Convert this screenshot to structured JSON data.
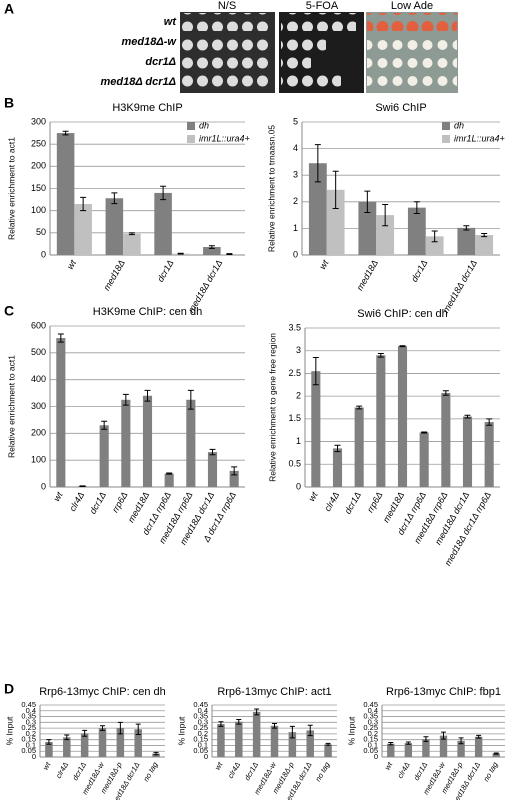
{
  "panel_labels": [
    "A",
    "B",
    "C",
    "D"
  ],
  "spot_assay": {
    "conditions": [
      "N/S",
      "5-FOA",
      "Low Ade"
    ],
    "strains": [
      "wt",
      "med18Δ-w",
      "dcr1Δ",
      "med18Δ dcr1Δ"
    ]
  },
  "chart_data": [
    {
      "type": "bar",
      "title": "H3K9me ChIP",
      "y_label": "Relative enrichment to act1",
      "categories": [
        "wt",
        "med18Δ",
        "dcr1Δ",
        "med18Δ dcr1Δ"
      ],
      "series": [
        {
          "name": "dh",
          "color": "#808080",
          "values": [
            275,
            128,
            140,
            18
          ],
          "errors": [
            4,
            12,
            15,
            3
          ]
        },
        {
          "name": "imr1L::ura4+",
          "color": "#c0c0c0",
          "values": [
            115,
            48,
            3,
            2
          ],
          "errors": [
            15,
            2,
            1,
            1
          ]
        }
      ],
      "ylim": [
        0,
        300
      ],
      "yticks": [
        0,
        50,
        100,
        150,
        200,
        250,
        300
      ],
      "grid": true,
      "legend": "upper right"
    },
    {
      "type": "bar",
      "title": "Swi6 ChIP",
      "y_label": "Relative enrichment to trnaasn.05",
      "categories": [
        "wt",
        "med18Δ",
        "dcr1Δ",
        "med18Δ dcr1Δ"
      ],
      "series": [
        {
          "name": "dh",
          "color": "#808080",
          "values": [
            3.45,
            2.0,
            1.78,
            1.02
          ],
          "errors": [
            0.7,
            0.4,
            0.22,
            0.08
          ]
        },
        {
          "name": "imr1L::ura4+",
          "color": "#c0c0c0",
          "values": [
            2.45,
            1.5,
            0.7,
            0.75
          ],
          "errors": [
            0.7,
            0.4,
            0.2,
            0.06
          ]
        }
      ],
      "ylim": [
        0,
        5
      ],
      "yticks": [
        0,
        1,
        2,
        3,
        4,
        5
      ],
      "grid": true,
      "legend": "upper right"
    },
    {
      "type": "bar",
      "title": "H3K9me ChIP: cen dh",
      "y_label": "Relative enrichment to act1",
      "categories": [
        "wt",
        "clr4Δ",
        "dcr1Δ",
        "rrp6Δ",
        "med18Δ",
        "dcr1Δ rrp6Δ",
        "med18Δ rrp6Δ",
        "med18Δ dcr1Δ",
        "Δ dcr1Δ rrp6Δ"
      ],
      "values": [
        555,
        3,
        230,
        325,
        340,
        50,
        325,
        130,
        60
      ],
      "errors": [
        15,
        1,
        15,
        20,
        20,
        2,
        35,
        10,
        15
      ],
      "color": "#808080",
      "ylim": [
        0,
        600
      ],
      "yticks": [
        0,
        100,
        200,
        300,
        400,
        500,
        600
      ],
      "grid": true
    },
    {
      "type": "bar",
      "title": "Swi6 ChIP: cen dh",
      "y_label": "Relative enrichment to gene free region",
      "categories": [
        "wt",
        "clr4Δ",
        "dcr1Δ",
        "rrp6Δ",
        "med18Δ",
        "dcr1Δ rrp6Δ",
        "med18Δ rrp6Δ",
        "med18Δ dcr1Δ",
        "med18Δ dcr1Δ rrp6Δ"
      ],
      "values": [
        2.55,
        0.85,
        1.75,
        2.9,
        3.1,
        1.2,
        2.07,
        1.55,
        1.43
      ],
      "errors": [
        0.3,
        0.07,
        0.03,
        0.04,
        0.01,
        0.01,
        0.05,
        0.03,
        0.07
      ],
      "color": "#808080",
      "ylim": [
        0,
        3.5
      ],
      "yticks": [
        0,
        0.5,
        1,
        1.5,
        2,
        2.5,
        3,
        3.5
      ],
      "grid": true
    },
    {
      "type": "bar",
      "title": "Rrp6-13myc ChIP: cen dh",
      "y_label": "% Input",
      "categories": [
        "wt",
        "clr4Δ",
        "dcr1Δ",
        "med18Δ-w",
        "med18Δ-p",
        "med18Δ dcr1Δ",
        "no tag"
      ],
      "values": [
        0.13,
        0.17,
        0.205,
        0.25,
        0.25,
        0.24,
        0.03
      ],
      "errors": [
        0.02,
        0.02,
        0.025,
        0.02,
        0.05,
        0.045,
        0.01
      ],
      "color": "#808080",
      "ylim": [
        0,
        0.45
      ],
      "yticks": [
        0,
        0.05,
        0.1,
        0.15,
        0.2,
        0.25,
        0.3,
        0.35,
        0.4,
        0.45
      ],
      "grid": true
    },
    {
      "type": "bar",
      "title": "Rrp6-13myc ChIP: act1",
      "y_label": "% Input",
      "categories": [
        "wt",
        "clr4Δ",
        "dcr1Δ",
        "med18Δ-w",
        "med18Δ-p",
        "med18Δ dcr1Δ",
        "no tag"
      ],
      "values": [
        0.285,
        0.305,
        0.39,
        0.27,
        0.215,
        0.23,
        0.11
      ],
      "errors": [
        0.02,
        0.02,
        0.025,
        0.02,
        0.05,
        0.045,
        0.008
      ],
      "color": "#808080",
      "ylim": [
        0,
        0.45
      ],
      "yticks": [
        0,
        0.05,
        0.1,
        0.15,
        0.2,
        0.25,
        0.3,
        0.35,
        0.4,
        0.45
      ],
      "grid": true
    },
    {
      "type": "bar",
      "title": "Rrp6-13myc ChIP: fbp1",
      "y_label": "% Input",
      "categories": [
        "wt",
        "clr4Δ",
        "dcr1Δ",
        "med18Δ-w",
        "med18Δ-p",
        "med18Δ dcr1Δ",
        "no tag"
      ],
      "values": [
        0.115,
        0.12,
        0.155,
        0.185,
        0.14,
        0.175,
        0.03
      ],
      "errors": [
        0.01,
        0.01,
        0.02,
        0.03,
        0.025,
        0.012,
        0.005
      ],
      "color": "#808080",
      "ylim": [
        0,
        0.45
      ],
      "yticks": [
        0,
        0.05,
        0.1,
        0.15,
        0.2,
        0.25,
        0.3,
        0.35,
        0.4,
        0.45
      ],
      "grid": true
    }
  ]
}
